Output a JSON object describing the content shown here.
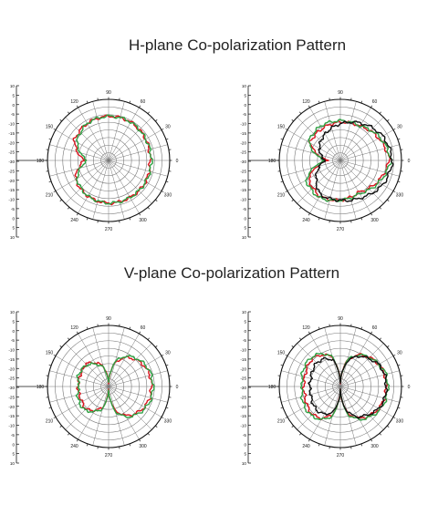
{
  "sections": [
    {
      "title": "H-plane Co-polarization Pattern"
    },
    {
      "title": "V-plane Co-polarization Pattern"
    }
  ],
  "colors": {
    "red": "#d9141e",
    "green": "#2ea043",
    "black": "#111111",
    "grid": "#777777"
  },
  "chart_data": [
    {
      "type": "polar",
      "title": "",
      "panel": "H-plane left",
      "rlim": [
        -30,
        10
      ],
      "radial_tick_labels": [
        "10",
        "5",
        "0",
        "-5",
        "-10",
        "-15",
        "-20",
        "-25",
        "-30",
        "-25",
        "-20",
        "-15",
        "-10",
        "-5",
        "0",
        "5",
        "10"
      ],
      "angle_tick_labels": [
        "0",
        "30",
        "60",
        "90",
        "120",
        "150",
        "180",
        "210",
        "240",
        "270",
        "300",
        "330"
      ],
      "angles_deg": [
        0,
        30,
        60,
        90,
        120,
        150,
        180,
        210,
        240,
        270,
        300,
        330,
        360
      ],
      "series": [
        {
          "color": "red",
          "r_db": [
            -3,
            -2,
            -1,
            -1,
            -2,
            -4,
            -14,
            -5,
            -3,
            -2,
            -2,
            -2,
            -3
          ]
        },
        {
          "color": "green",
          "r_db": [
            -2,
            -2,
            -1,
            -1,
            -2,
            -6,
            -16,
            -6,
            -3,
            -2,
            -2,
            -2,
            -2
          ]
        }
      ]
    },
    {
      "type": "polar",
      "title": "",
      "panel": "H-plane right",
      "rlim": [
        -30,
        10
      ],
      "radial_tick_labels": [
        "10",
        "5",
        "0",
        "-5",
        "-10",
        "-15",
        "-20",
        "-25",
        "-30",
        "-25",
        "-20",
        "-15",
        "-10",
        "-5",
        "0",
        "5",
        "10"
      ],
      "angle_tick_labels": [
        "0",
        "30",
        "60",
        "90",
        "120",
        "150",
        "180",
        "210",
        "240",
        "270",
        "300",
        "330"
      ],
      "angles_deg": [
        0,
        30,
        60,
        90,
        120,
        150,
        180,
        210,
        240,
        270,
        300,
        330,
        360
      ],
      "series": [
        {
          "color": "red",
          "r_db": [
            2,
            -1,
            -4,
            -5,
            -6,
            -7,
            -22,
            -6,
            -3,
            -4,
            -6,
            -2,
            2
          ]
        },
        {
          "color": "green",
          "r_db": [
            3,
            0,
            -4,
            -4,
            -4,
            -6,
            -20,
            -4,
            -2,
            -4,
            -5,
            -1,
            3
          ]
        },
        {
          "color": "black",
          "r_db": [
            4,
            2,
            -2,
            -6,
            -10,
            -14,
            -20,
            -12,
            -4,
            -4,
            -2,
            2,
            4
          ]
        }
      ]
    },
    {
      "type": "polar",
      "title": "",
      "panel": "V-plane left",
      "rlim": [
        -30,
        10
      ],
      "radial_tick_labels": [
        "10",
        "5",
        "0",
        "-5",
        "-10",
        "-15",
        "-20",
        "-25",
        "-30",
        "-25",
        "-20",
        "-15",
        "-10",
        "-5",
        "0",
        "5",
        "10"
      ],
      "angle_tick_labels": [
        "0",
        "30",
        "60",
        "90",
        "120",
        "150",
        "180",
        "210",
        "240",
        "270",
        "300",
        "330"
      ],
      "angles_deg": [
        0,
        15,
        30,
        45,
        60,
        75,
        90,
        105,
        120,
        135,
        150,
        165,
        180,
        195,
        210,
        225,
        240,
        255,
        270,
        285,
        300,
        315,
        330,
        345,
        360
      ],
      "series": [
        {
          "color": "red",
          "r_db": [
            -2,
            -2,
            -3,
            -5,
            -8,
            -14,
            -28,
            -16,
            -12,
            -9,
            -10,
            -10,
            -10,
            -10,
            -10,
            -9,
            -12,
            -16,
            -28,
            -14,
            -8,
            -5,
            -3,
            -2,
            -2
          ]
        },
        {
          "color": "green",
          "r_db": [
            -1,
            -1,
            -2,
            -4,
            -7,
            -13,
            -28,
            -17,
            -13,
            -10,
            -9,
            -9,
            -11,
            -9,
            -8,
            -8,
            -11,
            -15,
            -28,
            -13,
            -7,
            -4,
            -2,
            -1,
            -1
          ]
        }
      ]
    },
    {
      "type": "polar",
      "title": "",
      "panel": "V-plane right",
      "rlim": [
        -30,
        10
      ],
      "radial_tick_labels": [
        "10",
        "5",
        "0",
        "-5",
        "-10",
        "-15",
        "-20",
        "-25",
        "-30",
        "-25",
        "-20",
        "-15",
        "-10",
        "-5",
        "0",
        "5",
        "10"
      ],
      "angle_tick_labels": [
        "0",
        "30",
        "60",
        "90",
        "120",
        "150",
        "180",
        "210",
        "240",
        "270",
        "300",
        "330"
      ],
      "angles_deg": [
        0,
        15,
        30,
        45,
        60,
        75,
        90,
        105,
        120,
        135,
        150,
        165,
        180,
        195,
        210,
        225,
        240,
        255,
        270,
        285,
        300,
        315,
        330,
        345,
        360
      ],
      "series": [
        {
          "color": "red",
          "r_db": [
            0,
            0,
            -1,
            -3,
            -6,
            -12,
            -28,
            -10,
            -6,
            -4,
            -5,
            -6,
            -6,
            -6,
            -5,
            -4,
            -6,
            -11,
            -28,
            -12,
            -6,
            -3,
            -1,
            0,
            0
          ]
        },
        {
          "color": "green",
          "r_db": [
            1,
            1,
            -1,
            -3,
            -6,
            -12,
            -28,
            -10,
            -5,
            -3,
            -3,
            -4,
            -5,
            -4,
            -3,
            -3,
            -5,
            -10,
            -28,
            -11,
            -5,
            -2,
            0,
            1,
            1
          ]
        },
        {
          "color": "black",
          "r_db": [
            0,
            0,
            -1,
            -4,
            -7,
            -13,
            -28,
            -12,
            -9,
            -8,
            -9,
            -10,
            -10,
            -10,
            -9,
            -8,
            -9,
            -13,
            -28,
            -13,
            -7,
            -4,
            -1,
            0,
            0
          ]
        }
      ]
    }
  ]
}
